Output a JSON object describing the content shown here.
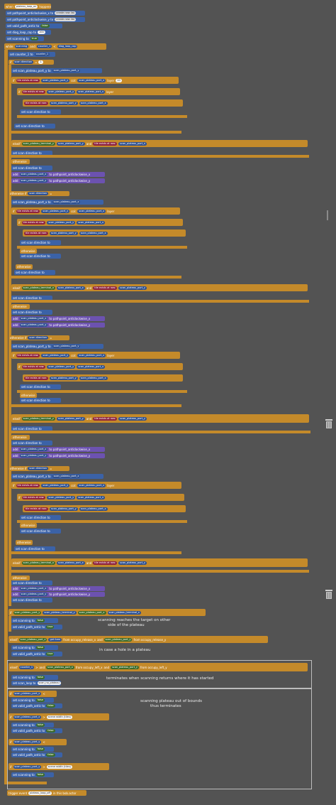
{
  "event": {
    "prefix": "when",
    "hat_value": "plateau_loop_on",
    "suffix": "happens"
  },
  "setup": [
    "set pathpoint_anticlockwise_x to",
    "create new list",
    "set pathpoint_anticlockwise_y to",
    "set valid_path_antic to",
    "false",
    "set diag_loop_cap to",
    "100",
    "set scanning to",
    "true"
  ],
  "loop": {
    "while": "while",
    "scanning": "scanning",
    "and": "and",
    "counter_1": "counter_1",
    "lt": "<",
    "diag_loop_cap": "diag_loop_cap"
  },
  "labels": {
    "set_counter": "set counter_1 to",
    "counter_1": "counter_1",
    "plus": "+",
    "one": "1",
    "if": "if",
    "scan_direction": "scan direction",
    "eq": "=",
    "set_scan_port_y": "set scan_plateau_port_y to",
    "set_scan_port_x": "set scan_plateau_port_x to",
    "scan_port_y": "scan_plateau_port_y",
    "scan_port_x": "scan_plateau_port_x",
    "tile_exists": "tile exists at row:",
    "col": "col:",
    "layer": "layer",
    "set_scan_direction": "set scan direction to",
    "elseif": "elseif",
    "else": "else",
    "otherwise": "otherwise",
    "otherwise_if": "otherwise if",
    "terminal_x": "scan_plateau_terminal_x",
    "terminal_y": "scan_plateau_terminal_y",
    "and": "and",
    "add": "add",
    "to_list_x": "to pathpoint_anticlockwise_x",
    "to_list_y": "to pathpoint_anticlockwise_y",
    "set_scanning": "set scanning to",
    "false": "false",
    "true": "true",
    "set_valid": "set valid_path_antic to",
    "get_item": "get item",
    "from_release_x": "from occupy_release_x",
    "from_release_y": "from occupy_release_y",
    "from_left_x": "from occupy_left_x",
    "from_left_y": "from occupy_left_y",
    "scene_width": "scene width (tiles)",
    "neq": "≠",
    "gt": ">",
    "lt": "<",
    "trigger_event": "trigger event",
    "in_bob": "in this bob.actor",
    "lay_value": "10",
    "value_plateau_loop_off": "plateau_loop_off",
    "set_scan_loop": "set scan_loop to",
    "scan_val": "scan_no_plateau"
  },
  "comments": [
    "scanning reaches the target on other",
    "side of the plateau",
    "in case a hole in a plateau",
    "terminates when scanning returns where it has started",
    "scanning plateau out of bounds",
    "thus terminates"
  ],
  "colors": {
    "background": "#535353",
    "control": "#c48a2a",
    "variable": "#3b62a7",
    "list": "#6c52b0",
    "operator": "#5b8b3a",
    "sensing": "#b8385a"
  },
  "icons": [
    "scrollbar-handle-icon",
    "trash-icon",
    "trash-icon"
  ]
}
